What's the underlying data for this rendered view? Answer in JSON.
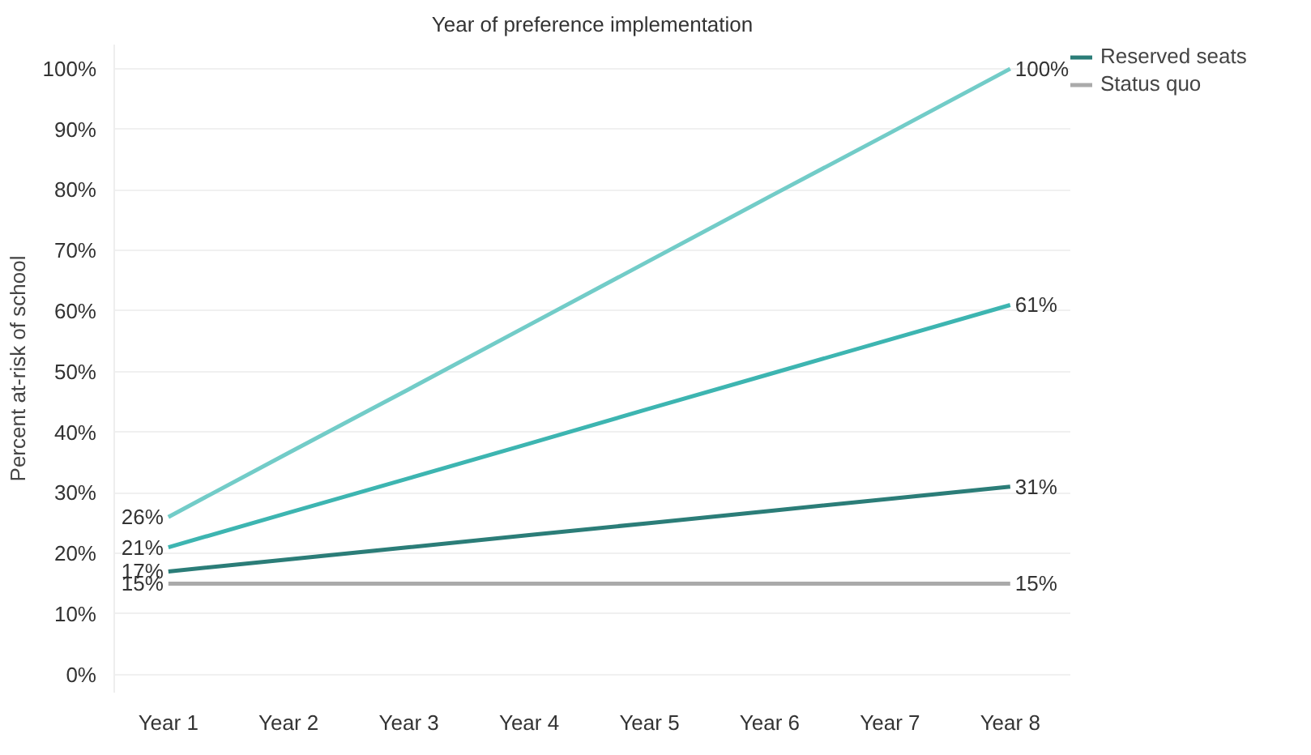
{
  "chart_data": {
    "type": "line",
    "xlabel": "Year of preference implementation",
    "ylabel": "Percent at-risk of school",
    "categories": [
      "Year 1",
      "Year 2",
      "Year 3",
      "Year 4",
      "Year 5",
      "Year 6",
      "Year 7",
      "Year 8"
    ],
    "series": [
      {
        "color": "#72ccc8",
        "values": [
          26,
          36.6,
          47.1,
          57.7,
          68.3,
          78.9,
          89.4,
          100
        ],
        "value_labels": [
          "26%",
          null,
          null,
          null,
          null,
          null,
          null,
          "100%"
        ]
      },
      {
        "color": "#3db5b1",
        "values": [
          21,
          26.7,
          32.4,
          38.1,
          43.9,
          49.6,
          55.3,
          61
        ],
        "value_labels": [
          "21%",
          null,
          null,
          null,
          null,
          null,
          null,
          "61%"
        ]
      },
      {
        "name": "Reserved seats",
        "color": "#2b7d78",
        "values": [
          17,
          19,
          21,
          23,
          25,
          27,
          29,
          31
        ],
        "value_labels": [
          "17%",
          null,
          null,
          null,
          null,
          null,
          null,
          "31%"
        ]
      },
      {
        "name": "Status quo",
        "color": "#aaaaaa",
        "values": [
          15,
          15,
          15,
          15,
          15,
          15,
          15,
          15
        ],
        "value_labels": [
          "15%",
          null,
          null,
          null,
          null,
          null,
          null,
          "15%"
        ]
      }
    ],
    "ylim": [
      -3,
      104
    ],
    "yticks": [
      {
        "value": 0,
        "label": "0%"
      },
      {
        "value": 10,
        "label": "10%"
      },
      {
        "value": 20,
        "label": "20%"
      },
      {
        "value": 30,
        "label": "30%"
      },
      {
        "value": 40,
        "label": "40%"
      },
      {
        "value": 50,
        "label": "50%"
      },
      {
        "value": 60,
        "label": "60%"
      },
      {
        "value": 70,
        "label": "70%"
      },
      {
        "value": 80,
        "label": "80%"
      },
      {
        "value": 90,
        "label": "90%"
      },
      {
        "value": 100,
        "label": "100%"
      }
    ],
    "grid": "y",
    "legend": "top right",
    "marker": "none",
    "line_style": "solid"
  }
}
